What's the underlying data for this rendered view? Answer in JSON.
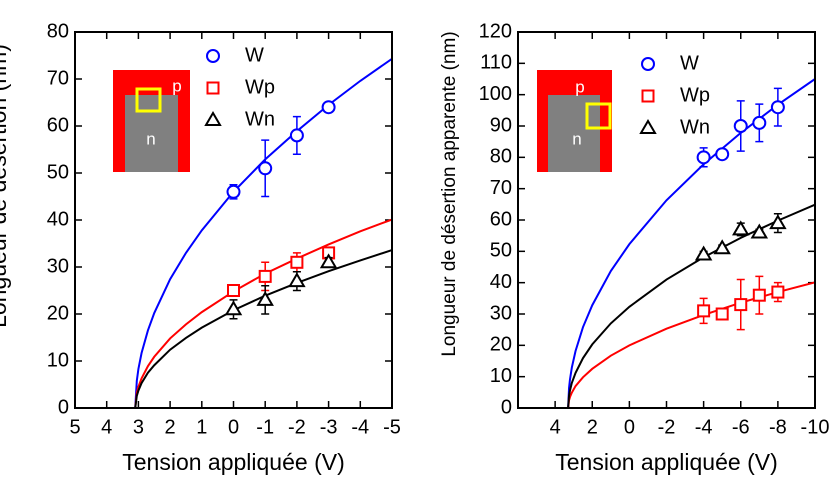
{
  "chart_data": [
    {
      "type": "scatter",
      "xlabel": "Tension appliquée (V)",
      "ylabel": "Longueur de désertion (nm)",
      "xlim": [
        5,
        -5
      ],
      "xticks": [
        5,
        4,
        3,
        2,
        1,
        0,
        -1,
        -2,
        -3,
        -4,
        -5
      ],
      "ylim": [
        0,
        80
      ],
      "yticks": [
        0,
        10,
        20,
        30,
        40,
        50,
        60,
        70,
        80
      ],
      "inset_labels": [
        "p",
        "n"
      ],
      "series": [
        {
          "name": "W",
          "color": "#0000ff",
          "marker": "circle",
          "x": [
            0,
            -1,
            -2,
            -3
          ],
          "values": [
            46,
            51,
            58,
            64
          ],
          "errors": [
            1.5,
            6,
            4,
            1
          ],
          "fit": {
            "x": [
              3.1,
              3.05,
              3,
              2.9,
              2.7,
              2.5,
              2,
              1.5,
              1,
              0,
              -1,
              -2,
              -3,
              -4,
              -5
            ],
            "y": [
              0,
              5.8,
              8.3,
              11.7,
              16.5,
              20.2,
              27.4,
              33.0,
              37.8,
              46.0,
              52.9,
              58.9,
              64.5,
              69.6,
              74.3
            ]
          }
        },
        {
          "name": "Wp",
          "color": "#ff0000",
          "marker": "square",
          "x": [
            0,
            -1,
            -2,
            -3
          ],
          "values": [
            25,
            28,
            31,
            33
          ],
          "errors": [
            1,
            3,
            2,
            1
          ],
          "fit": {
            "x": [
              3.1,
              3.05,
              3,
              2.9,
              2.7,
              2.5,
              2,
              1.5,
              1,
              0,
              -1,
              -2,
              -3,
              -4,
              -5
            ],
            "y": [
              0,
              3.2,
              4.5,
              6.3,
              8.9,
              10.9,
              14.8,
              17.8,
              20.4,
              24.8,
              28.6,
              31.8,
              34.8,
              37.6,
              40.1
            ]
          }
        },
        {
          "name": "Wn",
          "color": "#000000",
          "marker": "triangle",
          "x": [
            0,
            -1,
            -2,
            -3
          ],
          "values": [
            21,
            23,
            27,
            31
          ],
          "errors": [
            2,
            3,
            2,
            1
          ],
          "fit": {
            "x": [
              3.1,
              3.05,
              3,
              2.9,
              2.7,
              2.5,
              2,
              1.5,
              1,
              0,
              -1,
              -2,
              -3,
              -4,
              -5
            ],
            "y": [
              0,
              2.6,
              3.7,
              5.3,
              7.5,
              9.1,
              12.4,
              14.9,
              17.1,
              20.8,
              23.9,
              26.6,
              29.1,
              31.4,
              33.6
            ]
          }
        }
      ]
    },
    {
      "type": "scatter",
      "xlabel": "Tension appliquée (V)",
      "ylabel": "Longueur de désertion apparente (nm)",
      "xlim": [
        6,
        -10
      ],
      "xticks": [
        4,
        2,
        0,
        -2,
        -4,
        -6,
        -8,
        -10
      ],
      "ylim": [
        0,
        120
      ],
      "yticks": [
        0,
        10,
        20,
        30,
        40,
        50,
        60,
        70,
        80,
        90,
        100,
        110,
        120
      ],
      "inset_labels": [
        "p",
        "n"
      ],
      "series": [
        {
          "name": "W",
          "color": "#0000ff",
          "marker": "circle",
          "x": [
            -4,
            -5,
            -6,
            -7,
            -8
          ],
          "values": [
            80,
            81,
            90,
            91,
            96
          ],
          "errors": [
            3,
            1,
            8,
            6,
            6
          ],
          "fit": {
            "x": [
              3.3,
              3.25,
              3.2,
              3.1,
              2.9,
              2.5,
              2,
              1,
              0,
              -2,
              -4,
              -6,
              -8,
              -10
            ],
            "y": [
              0,
              6.4,
              9.1,
              12.9,
              18.2,
              25.8,
              32.8,
              43.7,
              52.3,
              66.3,
              77.8,
              87.8,
              96.8,
              105.0
            ]
          }
        },
        {
          "name": "Wp",
          "color": "#ff0000",
          "marker": "square",
          "x": [
            -4,
            -5,
            -6,
            -7,
            -8
          ],
          "values": [
            31,
            30,
            33,
            36,
            37
          ],
          "errors": [
            4,
            1,
            8,
            6,
            3
          ],
          "fit": {
            "x": [
              3.3,
              3.25,
              3.2,
              3.1,
              2.9,
              2.5,
              2,
              1,
              0,
              -2,
              -4,
              -6,
              -8,
              -10
            ],
            "y": [
              0,
              2.5,
              3.5,
              4.9,
              7.0,
              9.8,
              12.5,
              16.7,
              20.0,
              25.3,
              29.7,
              33.6,
              37.0,
              40.1
            ]
          }
        },
        {
          "name": "Wn",
          "color": "#000000",
          "marker": "triangle",
          "x": [
            -4,
            -5,
            -6,
            -7,
            -8
          ],
          "values": [
            49,
            51,
            57,
            56,
            59
          ],
          "errors": [
            1,
            1,
            2,
            1,
            3
          ],
          "fit": {
            "x": [
              3.3,
              3.25,
              3.2,
              3.1,
              2.9,
              2.5,
              2,
              1,
              0,
              -2,
              -4,
              -6,
              -8,
              -10
            ],
            "y": [
              0,
              4.0,
              5.6,
              8.0,
              11.2,
              15.9,
              20.3,
              27.0,
              32.3,
              41.0,
              48.1,
              54.3,
              59.8,
              64.9
            ]
          }
        }
      ]
    }
  ]
}
